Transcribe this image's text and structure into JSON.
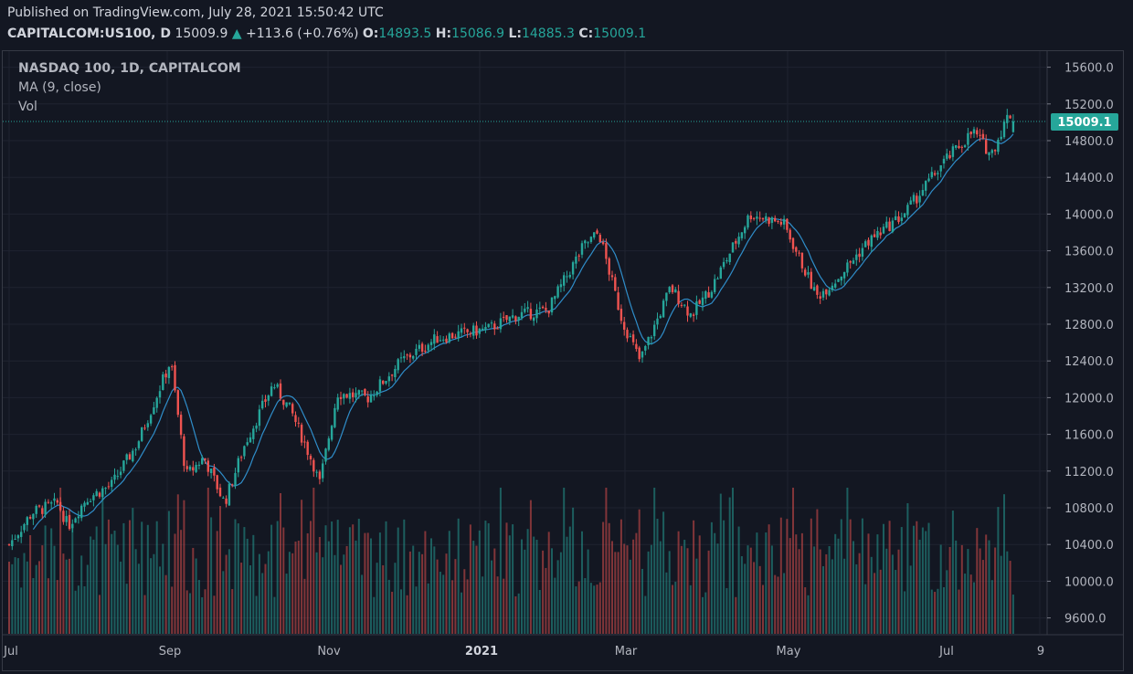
{
  "header": {
    "published": "Published on TradingView.com, July 28, 2021 15:50:42 UTC",
    "symbol": "CAPITALCOM:US100, D",
    "last": "15009.9",
    "change_arrow": "▲",
    "change": "+113.6 (+0.76%)",
    "open_label": "O:",
    "open": "14893.5",
    "high_label": "H:",
    "high": "15086.9",
    "low_label": "L:",
    "low": "14885.3",
    "close_label": "C:",
    "close": "15009.1"
  },
  "legend": {
    "title": "NASDAQ 100, 1D, CAPITALCOM",
    "ma": "MA (9, close)",
    "vol": "Vol"
  },
  "colors": {
    "background": "#131722",
    "up": "#26a69a",
    "down": "#ef5350",
    "ma": "#2f8dc9",
    "grid": "#1f2330",
    "text": "#b2b5be"
  },
  "chart_data": {
    "type": "candlestick",
    "title": "NASDAQ 100, 1D, CAPITALCOM",
    "y_axis_ticks": [
      15600,
      15200,
      14800,
      14400,
      14000,
      13600,
      13200,
      12800,
      12400,
      12000,
      11600,
      11200,
      10800,
      10400,
      10000,
      9600
    ],
    "y_axis_labels": [
      "15600.0",
      "15200.0",
      "14800.0",
      "14400.0",
      "14000.0",
      "13600.0",
      "13200.0",
      "12800.0",
      "12400.0",
      "12000.0",
      "11600.0",
      "11200.0",
      "10800.0",
      "10400.0",
      "10000.0",
      "9600.0"
    ],
    "ylim": [
      9500,
      15800
    ],
    "x_axis_labels": [
      "Jul",
      "Sep",
      "Nov",
      "2021",
      "Mar",
      "May",
      "Jul",
      "9"
    ],
    "last_price_label": "15009.1",
    "last_price": 15009.1,
    "close_series": [
      {
        "date": "2020-07-01",
        "close": 10400
      },
      {
        "date": "2020-07-10",
        "close": 10750
      },
      {
        "date": "2020-07-20",
        "close": 10850
      },
      {
        "date": "2020-07-24",
        "close": 10600
      },
      {
        "date": "2020-07-31",
        "close": 10900
      },
      {
        "date": "2020-08-10",
        "close": 11050
      },
      {
        "date": "2020-08-20",
        "close": 11500
      },
      {
        "date": "2020-09-02",
        "close": 12400
      },
      {
        "date": "2020-09-08",
        "close": 11150
      },
      {
        "date": "2020-09-15",
        "close": 11350
      },
      {
        "date": "2020-09-23",
        "close": 10850
      },
      {
        "date": "2020-10-01",
        "close": 11500
      },
      {
        "date": "2020-10-12",
        "close": 12150
      },
      {
        "date": "2020-10-19",
        "close": 11850
      },
      {
        "date": "2020-10-28",
        "close": 11250
      },
      {
        "date": "2020-10-30",
        "close": 11050
      },
      {
        "date": "2020-11-06",
        "close": 12050
      },
      {
        "date": "2020-11-18",
        "close": 12000
      },
      {
        "date": "2020-12-01",
        "close": 12400
      },
      {
        "date": "2020-12-15",
        "close": 12650
      },
      {
        "date": "2021-01-04",
        "close": 12750
      },
      {
        "date": "2021-01-15",
        "close": 12900
      },
      {
        "date": "2021-01-27",
        "close": 12950
      },
      {
        "date": "2021-02-10",
        "close": 13650
      },
      {
        "date": "2021-02-16",
        "close": 13800
      },
      {
        "date": "2021-02-25",
        "close": 12850
      },
      {
        "date": "2021-03-04",
        "close": 12400
      },
      {
        "date": "2021-03-16",
        "close": 13200
      },
      {
        "date": "2021-03-24",
        "close": 12900
      },
      {
        "date": "2021-04-01",
        "close": 13200
      },
      {
        "date": "2021-04-16",
        "close": 14000
      },
      {
        "date": "2021-04-29",
        "close": 13900
      },
      {
        "date": "2021-05-12",
        "close": 13100
      },
      {
        "date": "2021-05-20",
        "close": 13300
      },
      {
        "date": "2021-06-01",
        "close": 13700
      },
      {
        "date": "2021-06-15",
        "close": 14000
      },
      {
        "date": "2021-06-30",
        "close": 14550
      },
      {
        "date": "2021-07-12",
        "close": 14900
      },
      {
        "date": "2021-07-19",
        "close": 14650
      },
      {
        "date": "2021-07-26",
        "close": 15100
      },
      {
        "date": "2021-07-28",
        "close": 15009.1
      }
    ],
    "legend": [
      "MA (9, close)",
      "Vol"
    ],
    "grid": true
  }
}
